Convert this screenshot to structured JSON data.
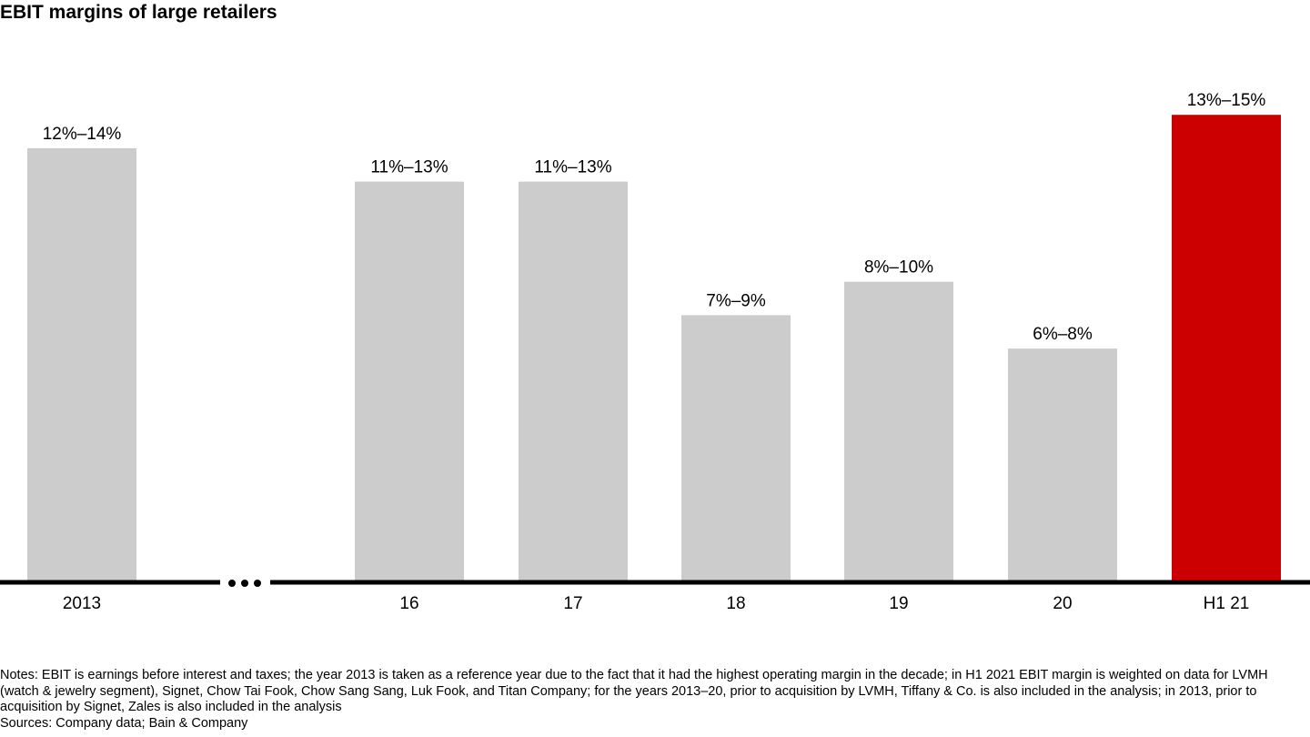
{
  "title": "EBIT margins of large retailers",
  "chart_data": {
    "type": "bar",
    "categories": [
      "2013",
      "16",
      "17",
      "18",
      "19",
      "20",
      "H1 21"
    ],
    "range_low": [
      12,
      11,
      11,
      7,
      8,
      6,
      13
    ],
    "range_high": [
      14,
      13,
      13,
      9,
      10,
      8,
      15
    ],
    "labels": [
      "12%–14%",
      "11%–13%",
      "11%–13%",
      "7%–9%",
      "8%–10%",
      "6%–8%",
      "13%–15%"
    ],
    "unit": "%",
    "axis_break_after": "2013",
    "colors": {
      "default": "#cccccc",
      "highlight": "#cc0000",
      "axis": "#000000"
    },
    "highlight_category": "H1 21"
  },
  "notes": "Notes: EBIT is earnings before interest and taxes; the year 2013 is taken as a reference year due to the fact that it had the highest operating margin in the decade; in H1 2021 EBIT margin is weighted on data for LVMH (watch & jewelry segment), Signet, Chow Tai Fook, Chow Sang Sang, Luk Fook, and Titan Company; for the years 2013–20, prior to acquisition by LVMH, Tiffany & Co. is also included in the analysis; in 2013, prior to acquisition by Signet, Zales is also included in the analysis",
  "sources": "Sources: Company data; Bain & Company"
}
